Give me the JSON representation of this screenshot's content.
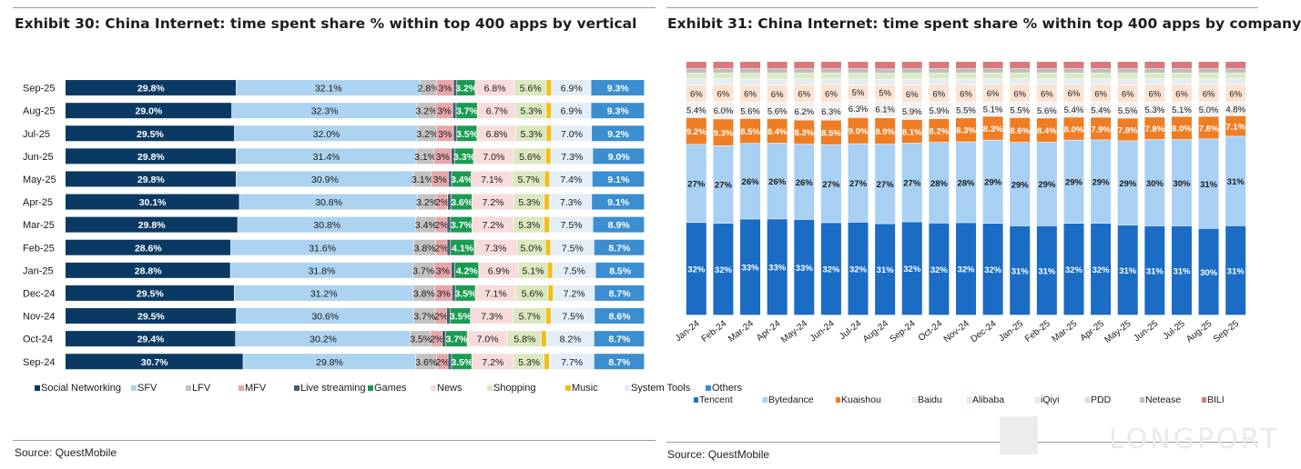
{
  "exhibit30": {
    "title": "Exhibit 30: China Internet: time spent share % within top 400 apps by vertical",
    "source": "Source: QuestMobile",
    "chart_data": {
      "type": "bar",
      "orientation": "horizontal",
      "stacked": true,
      "categories": [
        "Sep-25",
        "Aug-25",
        "Jul-25",
        "Jun-25",
        "May-25",
        "Apr-25",
        "Mar-25",
        "Feb-25",
        "Jan-25",
        "Dec-24",
        "Nov-24",
        "Oct-24",
        "Sep-24"
      ],
      "series": [
        {
          "name": "Social Networking",
          "color": "#0a3a63",
          "values": [
            29.8,
            29.0,
            29.5,
            29.8,
            29.8,
            30.1,
            29.8,
            28.6,
            28.8,
            29.5,
            29.5,
            29.4,
            30.7
          ],
          "labels": [
            "29.8%",
            "29.0%",
            "29.5%",
            "29.8%",
            "29.8%",
            "30.1%",
            "29.8%",
            "28.6%",
            "28.8%",
            "29.5%",
            "29.5%",
            "29.4%",
            "30.7%"
          ]
        },
        {
          "name": "SFV",
          "color": "#acd3f0",
          "values": [
            32.1,
            32.3,
            32.0,
            31.4,
            30.9,
            30.8,
            30.8,
            31.6,
            31.8,
            31.2,
            30.6,
            30.2,
            29.8
          ],
          "labels": [
            "32.1%",
            "32.3%",
            "32.0%",
            "31.4%",
            "30.9%",
            "30.8%",
            "30.8%",
            "31.6%",
            "31.8%",
            "31.2%",
            "30.6%",
            "30.2%",
            "29.8%"
          ]
        },
        {
          "name": "LFV",
          "color": "#c2c2c2",
          "values": [
            2.8,
            3.2,
            3.2,
            3.1,
            3.1,
            3.2,
            3.4,
            3.8,
            3.7,
            3.8,
            3.7,
            3.5,
            3.6
          ],
          "labels": [
            "2.8%",
            "3.2%",
            "3.2%",
            "3.1%",
            "3.1%",
            "3.2%",
            "3.4%",
            "3.8%",
            "3.7%",
            "3.8%",
            "3.7%",
            "3.5%",
            "3.6%"
          ]
        },
        {
          "name": "MFV",
          "color": "#e7a7a9",
          "values": [
            3,
            3,
            3,
            3,
            3,
            2,
            2,
            2,
            3,
            3,
            2,
            2,
            2
          ],
          "labels": [
            "3%",
            "3%",
            "3%",
            "3%",
            "3%",
            "2%",
            "2%",
            "2%",
            "3%",
            "3%",
            "2%",
            "2%",
            "2%"
          ]
        },
        {
          "name": "Live streaming",
          "color": "#495e7b",
          "values": [
            0.6,
            0.6,
            0.6,
            0.6,
            0.6,
            0.6,
            0.6,
            0.6,
            0.6,
            0.6,
            0.6,
            0.6,
            0.6
          ],
          "labels": [
            "",
            "",
            "",
            "",
            "",
            "",
            "",
            "",
            "",
            "",
            "",
            "",
            ""
          ]
        },
        {
          "name": "Games",
          "color": "#1a9b52",
          "values": [
            3.2,
            3.7,
            3.5,
            3.3,
            3.4,
            3.6,
            3.7,
            4.1,
            4.2,
            3.5,
            3.5,
            3.7,
            3.5
          ],
          "labels": [
            "3.2%",
            "3.7%",
            "3.5%",
            "3.3%",
            "3.4%",
            "3.6%",
            "3.7%",
            "4.1%",
            "4.2%",
            "3.5%",
            "3.5%",
            "3.7%",
            "3.5%"
          ]
        },
        {
          "name": "News",
          "color": "#f8dcdc",
          "values": [
            6.8,
            6.7,
            6.8,
            7.0,
            7.1,
            7.2,
            7.2,
            7.3,
            6.9,
            7.1,
            7.3,
            7.0,
            7.2
          ],
          "labels": [
            "6.8%",
            "6.7%",
            "6.8%",
            "7.0%",
            "7.1%",
            "7.2%",
            "7.2%",
            "7.3%",
            "6.9%",
            "7.1%",
            "7.3%",
            "7.0%",
            "7.2%"
          ]
        },
        {
          "name": "Shopping",
          "color": "#dce8bf",
          "values": [
            5.6,
            5.3,
            5.3,
            5.6,
            5.7,
            5.3,
            5.3,
            5.0,
            5.1,
            5.6,
            5.7,
            5.8,
            5.3
          ],
          "labels": [
            "5.6%",
            "5.3%",
            "5.3%",
            "5.6%",
            "5.7%",
            "5.3%",
            "5.3%",
            "5.0%",
            "5.1%",
            "5.6%",
            "5.7%",
            "5.8%",
            "5.3%"
          ]
        },
        {
          "name": "Music",
          "color": "#f2be1c",
          "values": [
            0.9,
            0.9,
            0.9,
            0.9,
            0.9,
            0.9,
            0.9,
            0.9,
            0.9,
            0.9,
            0.9,
            0.9,
            0.9
          ],
          "labels": [
            "",
            "",
            "",
            "",
            "",
            "",
            "",
            "",
            "",
            "",
            "",
            "",
            ""
          ]
        },
        {
          "name": "System Tools",
          "color": "#e4eef9",
          "values": [
            6.9,
            6.9,
            7.0,
            7.3,
            7.4,
            7.3,
            7.5,
            7.5,
            7.5,
            7.2,
            7.5,
            8.2,
            7.7
          ],
          "labels": [
            "6.9%",
            "6.9%",
            "7.0%",
            "7.3%",
            "7.4%",
            "7.3%",
            "7.5%",
            "7.5%",
            "7.5%",
            "7.2%",
            "7.5%",
            "8.2%",
            "7.7%"
          ]
        },
        {
          "name": "Others",
          "color": "#3b8ed0",
          "values": [
            9.3,
            9.3,
            9.2,
            9.0,
            9.1,
            9.1,
            8.9,
            8.7,
            8.5,
            8.7,
            8.6,
            8.7,
            8.7
          ],
          "labels": [
            "9.3%",
            "9.3%",
            "9.2%",
            "9.0%",
            "9.1%",
            "9.1%",
            "8.9%",
            "8.7%",
            "8.5%",
            "8.7%",
            "8.6%",
            "8.7%",
            "8.7%"
          ]
        }
      ],
      "legend_position": "bottom",
      "xlabel": "",
      "ylabel": ""
    }
  },
  "exhibit31": {
    "title": "Exhibit 31: China Internet: time spent share % within top 400 apps by company",
    "source": "Source: QuestMobile",
    "chart_data": {
      "type": "bar",
      "orientation": "vertical",
      "stacked": true,
      "percent_stacked": true,
      "categories": [
        "Jan-24",
        "Feb-24",
        "Mar-24",
        "Apr-24",
        "May-24",
        "Jun-24",
        "Jul-24",
        "Aug-24",
        "Sep-24",
        "Oct-24",
        "Nov-24",
        "Dec-24",
        "Jan-25",
        "Feb-25",
        "Mar-25",
        "Apr-25",
        "May-25",
        "Jun-25",
        "Jul-25",
        "Aug-25",
        "Sep-25"
      ],
      "series": [
        {
          "name": "Tencent",
          "color": "#1a6cc5",
          "values": [
            32,
            32,
            33,
            33,
            33,
            32,
            32,
            31,
            32,
            32,
            32,
            32,
            31,
            31,
            32,
            32,
            31,
            31,
            31,
            30,
            31
          ],
          "labels": [
            "32%",
            "32%",
            "33%",
            "33%",
            "33%",
            "32%",
            "32%",
            "31%",
            "32%",
            "32%",
            "32%",
            "32%",
            "31%",
            "31%",
            "32%",
            "32%",
            "31%",
            "31%",
            "31%",
            "30%",
            "31%"
          ]
        },
        {
          "name": "Bytedance",
          "color": "#a8d0f3",
          "values": [
            27,
            27,
            26,
            26,
            26,
            27,
            27,
            27,
            27,
            28,
            28,
            29,
            29,
            29,
            29,
            29,
            29,
            30,
            30,
            31,
            31
          ],
          "labels": [
            "27%",
            "27%",
            "26%",
            "26%",
            "26%",
            "27%",
            "27%",
            "27%",
            "27%",
            "28%",
            "28%",
            "29%",
            "29%",
            "29%",
            "29%",
            "29%",
            "29%",
            "30%",
            "30%",
            "31%",
            "31%"
          ]
        },
        {
          "name": "Kuaishou",
          "color": "#ef7d24",
          "values": [
            9.2,
            9.3,
            8.5,
            8.4,
            8.3,
            8.5,
            9.0,
            8.9,
            8.1,
            8.2,
            8.3,
            8.3,
            8.6,
            8.4,
            8.0,
            7.9,
            7.8,
            7.8,
            8.0,
            7.8,
            7.1
          ],
          "labels": [
            "9.2%",
            "9.3%",
            "8.5%",
            "8.4%",
            "8.3%",
            "8.5%",
            "9.0%",
            "8.9%",
            "8.1%",
            "8.2%",
            "8.3%",
            "8.3%",
            "8.6%",
            "8.4%",
            "8.0%",
            "7.9%",
            "7.8%",
            "7.8%",
            "8.0%",
            "7.8%",
            "7.1%"
          ]
        },
        {
          "name": "Baidu",
          "color": "#f2f2f2",
          "values": [
            5.4,
            6.0,
            5.6,
            5.6,
            6.2,
            6.3,
            6.3,
            6.1,
            5.9,
            5.9,
            5.5,
            5.1,
            5.5,
            5.6,
            5.4,
            5.4,
            5.5,
            5.3,
            5.1,
            5.0,
            4.8
          ],
          "labels": [
            "5.4%",
            "6.0%",
            "5.6%",
            "5.6%",
            "6.2%",
            "6.3%",
            "6.3%",
            "6.1%",
            "5.9%",
            "5.9%",
            "5.5%",
            "5.1%",
            "5.5%",
            "5.6%",
            "5.4%",
            "5.4%",
            "5.5%",
            "5.3%",
            "5.1%",
            "5.0%",
            "4.8%"
          ]
        },
        {
          "name": "Alibaba",
          "color": "#fbe3d2",
          "values": [
            6,
            6,
            6,
            6,
            6,
            6,
            5,
            5,
            6,
            6,
            6,
            6,
            6,
            6,
            6,
            6,
            6,
            6,
            6,
            6,
            6
          ],
          "labels": [
            "6%",
            "6%",
            "6%",
            "6%",
            "6%",
            "6%",
            "5%",
            "5%",
            "6%",
            "6%",
            "6%",
            "6%",
            "6%",
            "6%",
            "6%",
            "6%",
            "6%",
            "6%",
            "6%",
            "6%",
            "6%"
          ]
        },
        {
          "name": "iQiyi",
          "color": "#e8edf3",
          "values": [
            2,
            2,
            2,
            2,
            2,
            2,
            2,
            2,
            2,
            2,
            2,
            2,
            2,
            2,
            2,
            2,
            2,
            2,
            2,
            2,
            2
          ],
          "labels": [
            "",
            "",
            "",
            "",
            "",
            "",
            "",
            "",
            "",
            "",
            "",
            "",
            "",
            "",
            "",
            "",
            "",
            "",
            "",
            "",
            ""
          ]
        },
        {
          "name": "PDD",
          "color": "#dbe9c4",
          "values": [
            2,
            2,
            2,
            2,
            2,
            2,
            2,
            2,
            2,
            2,
            2,
            2,
            2,
            2,
            2,
            2,
            2,
            2,
            2,
            2,
            2
          ],
          "labels": [
            "",
            "",
            "",
            "",
            "",
            "",
            "",
            "",
            "",
            "",
            "",
            "",
            "",
            "",
            "",
            "",
            "",
            "",
            "",
            "",
            ""
          ]
        },
        {
          "name": "Netease",
          "color": "#bfbfbf",
          "values": [
            1.5,
            1.5,
            1.5,
            1.5,
            1.5,
            1.5,
            1.5,
            1.5,
            1.5,
            1.5,
            1.5,
            1.5,
            1.5,
            1.5,
            1.5,
            1.5,
            1.5,
            1.5,
            1.5,
            1.5,
            1.5
          ],
          "labels": [
            "",
            "",
            "",
            "",
            "",
            "",
            "",
            "",
            "",
            "",
            "",
            "",
            "",
            "",
            "",
            "",
            "",
            "",
            "",
            "",
            ""
          ]
        },
        {
          "name": "BILI",
          "color": "#d9797b",
          "values": [
            2.5,
            2.5,
            2.5,
            2.5,
            2.5,
            2.5,
            2.5,
            2.5,
            2.5,
            2.5,
            2.5,
            2.5,
            2.5,
            2.5,
            2.5,
            2.5,
            2.5,
            2.5,
            2.5,
            2.5,
            2.5
          ],
          "labels": [
            "",
            "",
            "",
            "",
            "",
            "",
            "",
            "",
            "",
            "",
            "",
            "",
            "",
            "",
            "",
            "",
            "",
            "",
            "",
            "",
            ""
          ]
        }
      ],
      "legend_position": "bottom",
      "xlabel": "",
      "ylabel": ""
    }
  },
  "watermark": {
    "text": "LONGPORT"
  }
}
